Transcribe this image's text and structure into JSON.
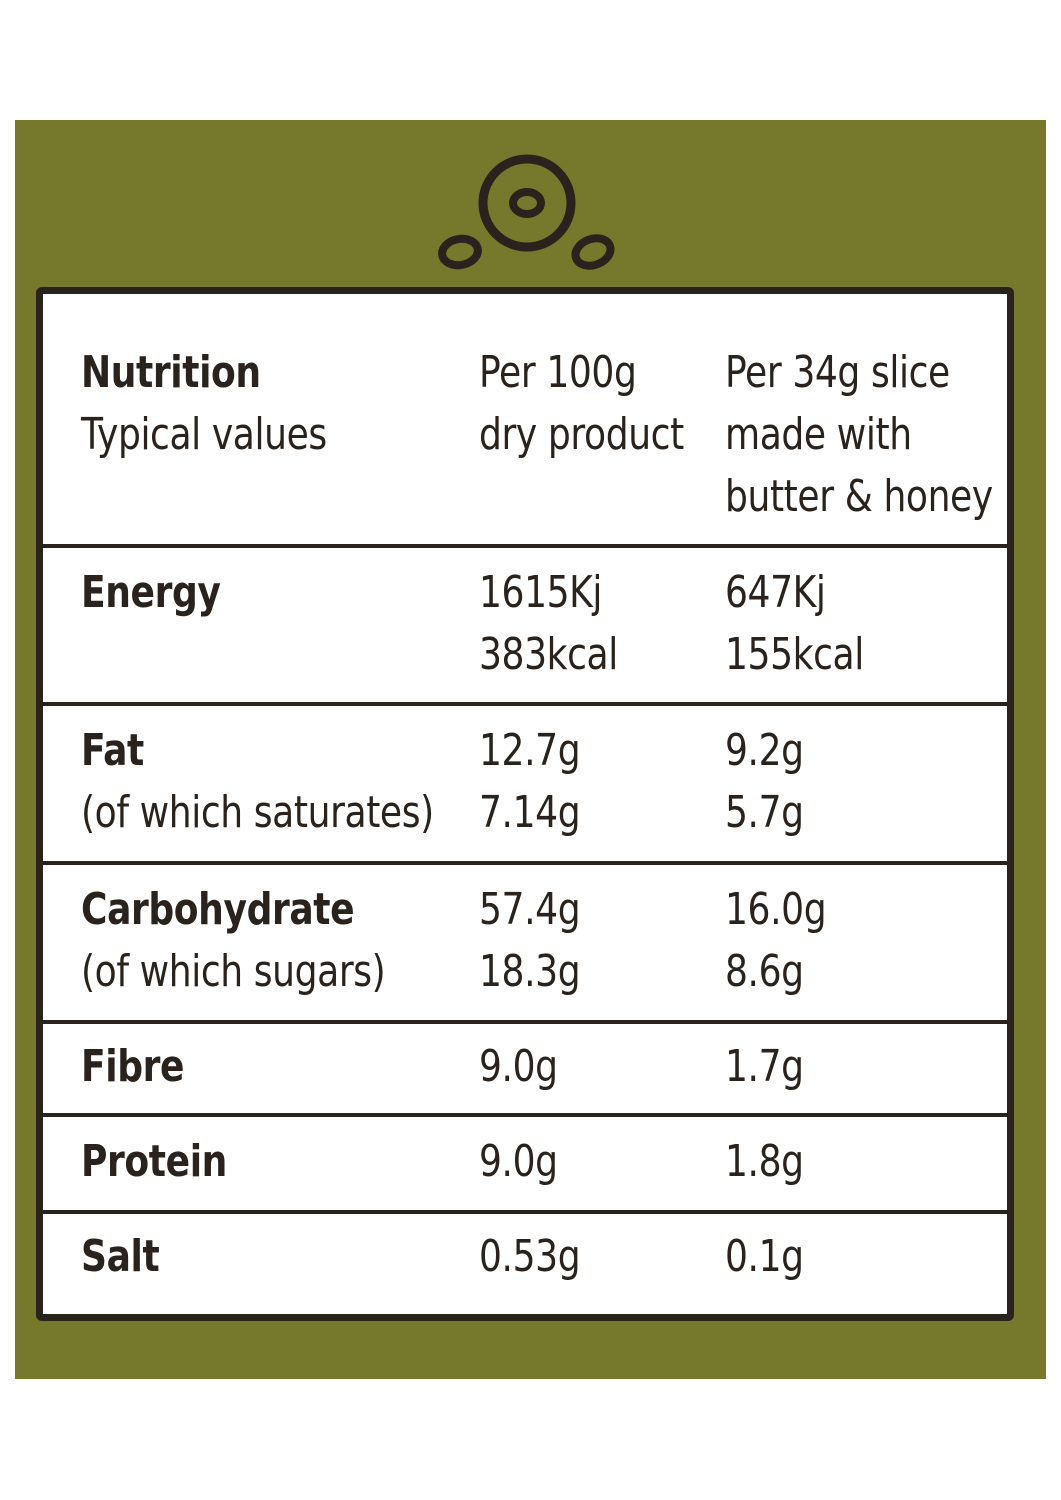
{
  "colors": {
    "panel": "#76782b",
    "ink": "#2a221c",
    "table_bg": "#ffffff"
  },
  "logo": {
    "icon": "seed-logo-icon"
  },
  "header": {
    "title": "Nutrition",
    "subtitle": "Typical values",
    "col2_line1": "Per 100g",
    "col2_line2": "dry product",
    "col3_line1": "Per 34g slice",
    "col3_line2": "made with",
    "col3_line3": "butter & honey"
  },
  "rows": {
    "energy": {
      "label": "Energy",
      "per100_line1": "1615Kj",
      "per100_line2": "383kcal",
      "slice_line1": "647Kj",
      "slice_line2": "155kcal"
    },
    "fat": {
      "label": "Fat",
      "sublabel": "(of which saturates)",
      "per100": "12.7g",
      "per100_sub": "7.14g",
      "slice": "9.2g",
      "slice_sub": "5.7g"
    },
    "carbohydrate": {
      "label": "Carbohydrate",
      "sublabel": "(of which sugars)",
      "per100": "57.4g",
      "per100_sub": "18.3g",
      "slice": "16.0g",
      "slice_sub": "8.6g"
    },
    "fibre": {
      "label": "Fibre",
      "per100": "9.0g",
      "slice": "1.7g"
    },
    "protein": {
      "label": "Protein",
      "per100": "9.0g",
      "slice": "1.8g"
    },
    "salt": {
      "label": "Salt",
      "per100": "0.53g",
      "slice": "0.1g"
    }
  }
}
